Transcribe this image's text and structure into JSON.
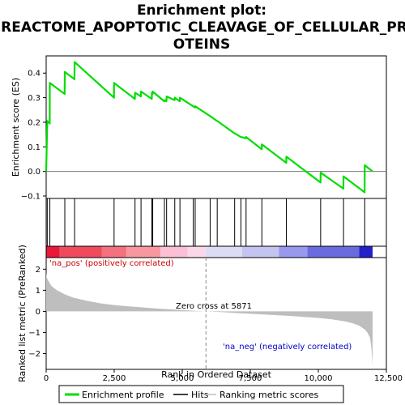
{
  "chart_data": [
    {
      "panel": "enrichment",
      "type": "line",
      "title_line1": "Enrichment plot:",
      "title_line2": "REACTOME_APOPTOTIC_CLEAVAGE_OF_CELLULAR_PR",
      "title_line3": "OTEINS",
      "ylabel": "Enrichment score (ES)",
      "xlim": [
        0,
        12500
      ],
      "ylim": [
        -0.11,
        0.47
      ],
      "yticks": [
        -0.1,
        0.0,
        0.1,
        0.2,
        0.3,
        0.4
      ],
      "ytick_labels": [
        "−0.1",
        "0.0",
        "0.1",
        "0.2",
        "0.3",
        "0.4"
      ],
      "baseline": 0.0,
      "color": "#00dd00",
      "series": [
        {
          "name": "Enrichment profile",
          "x": [
            0,
            40,
            45,
            130,
            135,
            680,
            685,
            1040,
            1045,
            2490,
            2495,
            3260,
            3265,
            3480,
            3485,
            3880,
            3885,
            3910,
            3915,
            4340,
            4345,
            4420,
            4425,
            4720,
            4725,
            4910,
            4915,
            5400,
            5405,
            5470,
            5475,
            6020,
            6025,
            6280,
            6285,
            6920,
            6925,
            7150,
            7155,
            7340,
            7345,
            7920,
            7925,
            8820,
            8825,
            10080,
            10085,
            10920,
            10925,
            11700,
            11705,
            11990
          ],
          "y": [
            0.0,
            0.19,
            0.205,
            0.195,
            0.36,
            0.315,
            0.405,
            0.375,
            0.445,
            0.3,
            0.36,
            0.295,
            0.32,
            0.305,
            0.325,
            0.295,
            0.32,
            0.315,
            0.325,
            0.285,
            0.29,
            0.285,
            0.305,
            0.29,
            0.3,
            0.285,
            0.3,
            0.265,
            0.265,
            0.26,
            0.265,
            0.225,
            0.225,
            0.205,
            0.205,
            0.155,
            0.155,
            0.14,
            0.14,
            0.135,
            0.14,
            0.09,
            0.11,
            0.035,
            0.06,
            -0.045,
            -0.005,
            -0.07,
            -0.02,
            -0.085,
            0.025,
            0.0
          ]
        }
      ]
    },
    {
      "panel": "hits",
      "type": "scatter",
      "name": "Hits",
      "hit_positions": [
        40,
        135,
        685,
        1045,
        2495,
        3265,
        3485,
        3885,
        3915,
        4345,
        4425,
        4725,
        4915,
        5405,
        5475,
        6025,
        6285,
        6925,
        7155,
        7345,
        7925,
        8825,
        10085,
        10925,
        11705
      ],
      "colorbar": [
        {
          "from": 0,
          "to": 500,
          "color": "#e8193a"
        },
        {
          "from": 500,
          "to": 2050,
          "color": "#ef4b5c"
        },
        {
          "from": 2050,
          "to": 2950,
          "color": "#f4727f"
        },
        {
          "from": 2950,
          "to": 4200,
          "color": "#f798a1"
        },
        {
          "from": 4200,
          "to": 5200,
          "color": "#fbbfd6"
        },
        {
          "from": 5200,
          "to": 5871,
          "color": "#fad8ea"
        },
        {
          "from": 5871,
          "to": 7200,
          "color": "#dcdcf5"
        },
        {
          "from": 7200,
          "to": 8550,
          "color": "#c4c4f0"
        },
        {
          "from": 8550,
          "to": 9600,
          "color": "#9898ec"
        },
        {
          "from": 9600,
          "to": 11500,
          "color": "#6b6be0"
        },
        {
          "from": 11500,
          "to": 11994,
          "color": "#2121c6"
        }
      ]
    },
    {
      "panel": "ranked_metric",
      "type": "area",
      "name": "Ranking metric scores",
      "ylabel": "Ranked list metric (PreRanked)",
      "xlabel": "Rank in Ordered Dataset",
      "xlim": [
        0,
        12500
      ],
      "xticks": [
        0,
        2500,
        5000,
        7500,
        10000,
        12500
      ],
      "xtick_labels": [
        "0",
        "2,500",
        "5,000",
        "7,500",
        "10,000",
        "12,500"
      ],
      "ylim": [
        -2.75,
        2.55
      ],
      "yticks": [
        -2,
        -1,
        0,
        1,
        2
      ],
      "ytick_labels": [
        "−2",
        "−1",
        "0",
        "1",
        "2"
      ],
      "zero_cross": 5871,
      "x": [
        0,
        20,
        80,
        200,
        400,
        700,
        1000,
        1500,
        2000,
        2500,
        3000,
        3500,
        4000,
        4500,
        5000,
        5500,
        5871,
        6500,
        7000,
        8000,
        9000,
        10000,
        10500,
        11000,
        11300,
        11500,
        11700,
        11800,
        11900,
        11950,
        11994
      ],
      "y": [
        1.85,
        1.6,
        1.45,
        1.2,
        1.0,
        0.8,
        0.65,
        0.5,
        0.38,
        0.3,
        0.24,
        0.19,
        0.14,
        0.1,
        0.06,
        0.02,
        0.0,
        -0.04,
        -0.08,
        -0.15,
        -0.22,
        -0.31,
        -0.38,
        -0.48,
        -0.58,
        -0.68,
        -0.85,
        -1.0,
        -1.25,
        -1.7,
        -2.55
      ],
      "color": "#bebebe",
      "pos_label": "'na_pos' (positively correlated)",
      "neg_label": "'na_neg' (negatively correlated)",
      "zero_label": "Zero cross at 5871",
      "pos_label_color": "#cc0000",
      "neg_label_color": "#0000cc"
    }
  ],
  "legend": {
    "items": [
      {
        "label": "Enrichment profile",
        "color": "#00dd00"
      },
      {
        "label": "Hits",
        "color": "#000000"
      },
      {
        "label": "Ranking metric scores",
        "color": "#bebebe"
      }
    ]
  }
}
